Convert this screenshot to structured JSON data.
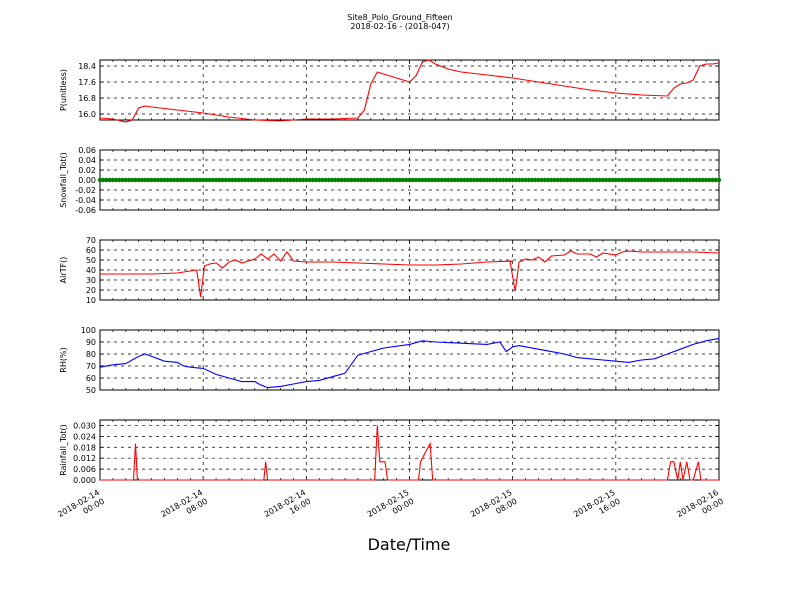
{
  "title": "Site8_Polo_Ground_Fifteen",
  "subtitle": "2018-02-16 - (2018-047)",
  "xlabel": "Date/Time",
  "x_ticks": [
    "2018-02-14\n00:00",
    "2018-02-14\n08:00",
    "2018-02-14\n16:00",
    "2018-02-15\n00:00",
    "2018-02-15\n08:00",
    "2018-02-15\n16:00",
    "2018-02-16\n00:00"
  ],
  "colors": {
    "red": "#ff0000",
    "green": "#007f00",
    "blue": "#0000ff"
  },
  "chart_data": [
    {
      "type": "line",
      "name": "pressure",
      "ylabel": "P(unitless)",
      "color": "#ff0000",
      "ylim": [
        15.7,
        18.7
      ],
      "yticks": [
        "16.0",
        "16.8",
        "17.6",
        "18.4"
      ],
      "ytick_values": [
        16.0,
        16.8,
        17.6,
        18.4
      ],
      "x_hours": [
        0,
        1,
        2,
        2.5,
        3,
        3.5,
        4,
        6,
        8,
        10,
        12,
        14,
        16,
        18,
        20,
        20.5,
        21,
        21.5,
        22,
        23,
        24,
        24.5,
        25,
        25.5,
        26,
        27,
        28,
        30,
        32,
        34,
        36,
        38,
        40,
        42,
        44,
        44.5,
        45,
        45.5,
        46,
        46.5,
        47,
        47.5,
        48
      ],
      "values": [
        15.8,
        15.75,
        15.6,
        15.7,
        16.3,
        16.4,
        16.35,
        16.2,
        16.05,
        15.85,
        15.7,
        15.65,
        15.75,
        15.75,
        15.8,
        16.2,
        17.5,
        18.1,
        18.0,
        17.8,
        17.6,
        17.9,
        18.6,
        18.7,
        18.5,
        18.25,
        18.1,
        17.95,
        17.8,
        17.6,
        17.4,
        17.2,
        17.05,
        16.95,
        16.9,
        17.3,
        17.5,
        17.55,
        17.7,
        18.4,
        18.5,
        18.5,
        18.55
      ]
    },
    {
      "type": "scatter",
      "name": "snowfall",
      "ylabel": "Snowfall_Tot()",
      "color": "#007f00",
      "ylim": [
        -0.06,
        0.06
      ],
      "yticks": [
        "0.06",
        "0.04",
        "0.02",
        "0.00",
        "-0.02",
        "-0.04",
        "-0.06"
      ],
      "ytick_values": [
        0.06,
        0.04,
        0.02,
        0.0,
        -0.02,
        -0.04,
        -0.06
      ],
      "constant": 0.0,
      "count": 193
    },
    {
      "type": "line",
      "name": "airtemp",
      "ylabel": "AirTF()",
      "color": "#ff0000",
      "ylim": [
        10,
        70
      ],
      "yticks": [
        "70",
        "60",
        "50",
        "40",
        "30",
        "20",
        "10"
      ],
      "ytick_values": [
        70,
        60,
        50,
        40,
        30,
        20,
        10
      ],
      "x_hours": [
        0,
        2,
        4,
        6,
        7.5,
        7.8,
        8.1,
        8.5,
        9,
        9.5,
        10,
        10.5,
        11,
        11.5,
        12,
        12.5,
        13,
        13.5,
        14,
        14.5,
        15,
        16,
        18,
        20,
        22,
        24,
        26,
        28,
        30,
        32,
        31.8,
        32.2,
        32.5,
        33,
        33.5,
        34,
        34.5,
        35,
        36,
        36.5,
        37,
        38,
        38.5,
        39,
        40,
        40.5,
        41,
        42,
        44,
        46,
        48
      ],
      "values": [
        36,
        36,
        36,
        37,
        40,
        13,
        44,
        46,
        47,
        42,
        48,
        50,
        47,
        49,
        51,
        56,
        51,
        56,
        49,
        58,
        49,
        48,
        48,
        47,
        46,
        45,
        45,
        46,
        48,
        49,
        48,
        19,
        48,
        51,
        50,
        53,
        48,
        54,
        55,
        59,
        56,
        56,
        53,
        57,
        55,
        58,
        59,
        58,
        58,
        58,
        57
      ]
    },
    {
      "type": "line",
      "name": "rh",
      "ylabel": "RH(%)",
      "color": "#0000ff",
      "ylim": [
        50,
        100
      ],
      "yticks": [
        "100",
        "90",
        "80",
        "70",
        "60",
        "50"
      ],
      "ytick_values": [
        100,
        90,
        80,
        70,
        60,
        50
      ],
      "x_hours": [
        0,
        1,
        2,
        3,
        3.5,
        4,
        5,
        6,
        6.5,
        7,
        8,
        9,
        10,
        11,
        12,
        12.5,
        13,
        14,
        15,
        16,
        17,
        18,
        19,
        20,
        21,
        22,
        24,
        25,
        26,
        28,
        30,
        31,
        31.5,
        32,
        32.5,
        33,
        34,
        35,
        36,
        37,
        38,
        39,
        40,
        41,
        42,
        43,
        44,
        45,
        46,
        47,
        48
      ],
      "values": [
        69,
        71,
        72,
        78,
        80,
        78,
        74,
        73,
        70,
        69,
        68,
        63,
        60,
        57,
        57,
        54,
        52,
        53,
        55,
        57,
        58,
        61,
        64,
        79,
        82,
        85,
        88,
        91,
        90,
        89,
        88,
        90,
        82,
        86,
        87,
        86,
        84,
        82,
        80,
        77,
        76,
        75,
        74,
        73,
        75,
        76,
        80,
        84,
        88,
        91,
        93
      ]
    },
    {
      "type": "line",
      "name": "rainfall",
      "ylabel": "Rainfall_Tot()",
      "color": "#ff0000",
      "ylim": [
        0,
        0.033
      ],
      "yticks": [
        "0.030",
        "0.024",
        "0.018",
        "0.012",
        "0.006",
        "0.000"
      ],
      "ytick_values": [
        0.03,
        0.024,
        0.018,
        0.012,
        0.006,
        0.0
      ],
      "x_hours": [
        0,
        2.6,
        2.75,
        2.9,
        12.7,
        12.85,
        13,
        21.3,
        21.5,
        21.7,
        22.1,
        22.3,
        24.7,
        24.85,
        25.6,
        25.8,
        26,
        44,
        44.25,
        44.5,
        44.8,
        45,
        45.2,
        45.5,
        45.75,
        46,
        46.4,
        46.6,
        46.8,
        48
      ],
      "values": [
        0,
        0,
        0.02,
        0,
        0,
        0.01,
        0,
        0,
        0.03,
        0.01,
        0.01,
        0,
        0,
        0.01,
        0.02,
        0,
        0,
        0,
        0.01,
        0.01,
        0,
        0.01,
        0,
        0.01,
        0,
        0,
        0.01,
        0,
        0,
        0
      ]
    }
  ]
}
